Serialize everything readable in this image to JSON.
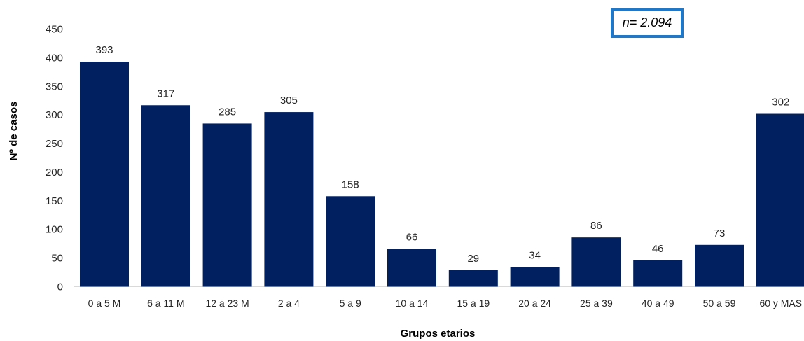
{
  "chart_data": {
    "type": "bar",
    "categories": [
      "0 a 5 M",
      "6 a 11 M",
      "12 a 23 M",
      "2 a 4",
      "5 a 9",
      "10 a 14",
      "15 a 19",
      "20 a 24",
      "25 a 39",
      "40 a 49",
      "50 a 59",
      "60 y MAS"
    ],
    "values": [
      393,
      317,
      285,
      305,
      158,
      66,
      29,
      34,
      86,
      46,
      73,
      302
    ],
    "xlabel": "Grupos etarios",
    "ylabel": "Nº de casos",
    "ylim": [
      0,
      450
    ],
    "yticks": [
      0,
      50,
      100,
      150,
      200,
      250,
      300,
      350,
      400,
      450
    ],
    "grid": false,
    "bar_color": "#002060",
    "annotation": "n= 2.094",
    "annotation_border_color": "#1f78c8"
  }
}
